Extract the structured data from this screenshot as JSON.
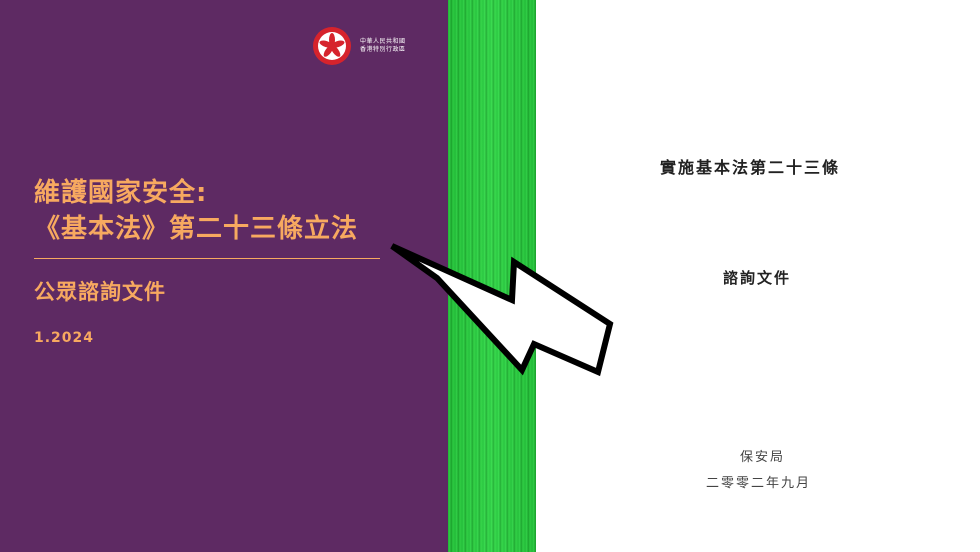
{
  "left_cover": {
    "gov_line_1": "中華人民共和國",
    "gov_line_2": "香港特別行政區",
    "title_line_1": "維護國家安全:",
    "title_line_2": "《基本法》第二十三條立法",
    "subtitle": "公眾諮詢文件",
    "date": "1.2024",
    "colors": {
      "background": "#5e2a63",
      "accent": "#f7a960"
    }
  },
  "right_page": {
    "title": "實施基本法第二十三條",
    "subtitle": "諮詢文件",
    "issuer": "保安局",
    "date": "二零零二年九月"
  },
  "spine": {
    "color": "#22c63a"
  },
  "overlay": {
    "icon": "lightning-bolt-icon",
    "color": "#000000"
  }
}
